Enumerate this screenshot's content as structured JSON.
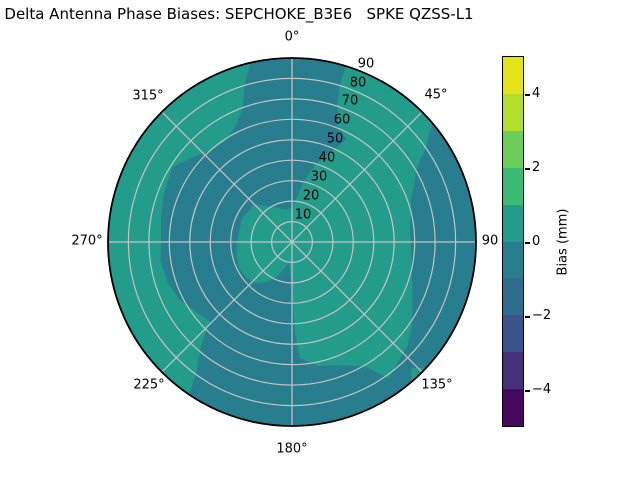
{
  "title": "Delta Antenna Phase Biases: SEPCHOKE_B3E6   SPKE QZSS-L1",
  "chart_data": {
    "type": "heatmap",
    "projection": "polar",
    "grid": true,
    "angular_tick_labels": [
      "0°",
      "45°",
      "90",
      "135°",
      "180°",
      "225°",
      "270°",
      "315°"
    ],
    "radial_tick_labels": [
      "10",
      "20",
      "30",
      "40",
      "50",
      "60",
      "70",
      "80",
      "90"
    ],
    "radial_range": [
      0,
      90
    ],
    "colorbar": {
      "label": "Bias (mm)",
      "range": [
        -5,
        5
      ],
      "tick_values": [
        4,
        2,
        0,
        -2,
        -4
      ],
      "tick_labels": [
        "4",
        "2",
        "0",
        "−2",
        "−4"
      ],
      "segments_top_to_bottom": [
        {
          "range": [
            4,
            5
          ],
          "color": "#e5e419"
        },
        {
          "range": [
            3,
            4
          ],
          "color": "#b2dd2c"
        },
        {
          "range": [
            2,
            3
          ],
          "color": "#6cce59"
        },
        {
          "range": [
            1,
            2
          ],
          "color": "#3bbb75"
        },
        {
          "range": [
            0,
            1
          ],
          "color": "#249c8c"
        },
        {
          "range": [
            -1,
            0
          ],
          "color": "#287e8e"
        },
        {
          "range": [
            -2,
            -1
          ],
          "color": "#2e6d8e"
        },
        {
          "range": [
            -3,
            -2
          ],
          "color": "#3b518b"
        },
        {
          "range": [
            -4,
            -3
          ],
          "color": "#45307e"
        },
        {
          "range": [
            -5,
            -4
          ],
          "color": "#46085c"
        }
      ]
    },
    "regions": [
      {
        "name": "background-positive",
        "value_range_mm": [
          0,
          1
        ],
        "color": "#249c8c"
      },
      {
        "name": "negative-lobe-center",
        "value_range_mm": [
          -1,
          0
        ],
        "color": "#287e8e",
        "points_az_r": [
          [
            347,
            90
          ],
          [
            353,
            90
          ],
          [
            359,
            90
          ],
          [
            5,
            90
          ],
          [
            11,
            90
          ],
          [
            17,
            90
          ],
          [
            17,
            79
          ],
          [
            19,
            68
          ],
          [
            21,
            61
          ],
          [
            28,
            57
          ],
          [
            24,
            49
          ],
          [
            17,
            40
          ],
          [
            12,
            31
          ],
          [
            8,
            24
          ],
          [
            1,
            17
          ],
          [
            350,
            16
          ],
          [
            330,
            20
          ],
          [
            315,
            26
          ],
          [
            295,
            27
          ],
          [
            270,
            27
          ],
          [
            255,
            28
          ],
          [
            243,
            29
          ],
          [
            232,
            28
          ],
          [
            222,
            27
          ],
          [
            212,
            23
          ],
          [
            203,
            18
          ],
          [
            195,
            13
          ],
          [
            188,
            10
          ],
          [
            181,
            20
          ],
          [
            179,
            32
          ],
          [
            178,
            45
          ],
          [
            176,
            57
          ],
          [
            168,
            62
          ],
          [
            158,
            65
          ],
          [
            150,
            70
          ],
          [
            146,
            78
          ],
          [
            144,
            84
          ],
          [
            143,
            90
          ],
          [
            150,
            90
          ],
          [
            158,
            90
          ],
          [
            166,
            90
          ],
          [
            174,
            90
          ],
          [
            182,
            90
          ],
          [
            190,
            90
          ],
          [
            198,
            90
          ],
          [
            206,
            90
          ],
          [
            214,
            90
          ],
          [
            216,
            80
          ],
          [
            221,
            68
          ],
          [
            226,
            56
          ],
          [
            234,
            58
          ],
          [
            243,
            62
          ],
          [
            252,
            64
          ],
          [
            262,
            65
          ],
          [
            270,
            64
          ],
          [
            280,
            65
          ],
          [
            290,
            67
          ],
          [
            302,
            69
          ],
          [
            310,
            64
          ],
          [
            318,
            60
          ],
          [
            326,
            59
          ],
          [
            334,
            63
          ],
          [
            340,
            70
          ],
          [
            343,
            80
          ]
        ]
      },
      {
        "name": "negative-band-east",
        "value_range_mm": [
          -1,
          0
        ],
        "color": "#287e8e",
        "points_az_r": [
          [
            50,
            90
          ],
          [
            58,
            90
          ],
          [
            66,
            90
          ],
          [
            74,
            90
          ],
          [
            82,
            90
          ],
          [
            90,
            90
          ],
          [
            98,
            90
          ],
          [
            106,
            90
          ],
          [
            114,
            90
          ],
          [
            122,
            90
          ],
          [
            130,
            90
          ],
          [
            138,
            90
          ],
          [
            143,
            90
          ],
          [
            148,
            90
          ],
          [
            146,
            83
          ],
          [
            140,
            79
          ],
          [
            132,
            76
          ],
          [
            126,
            72
          ],
          [
            120,
            68
          ],
          [
            113,
            64
          ],
          [
            106,
            61
          ],
          [
            98,
            59
          ],
          [
            90,
            58
          ],
          [
            83,
            58
          ],
          [
            76,
            60
          ],
          [
            70,
            62
          ],
          [
            65,
            66
          ],
          [
            60,
            70
          ],
          [
            57,
            75
          ],
          [
            55,
            80
          ],
          [
            52,
            85
          ]
        ]
      },
      {
        "name": "positive-rim-notch-135",
        "value_range_mm": [
          0,
          1
        ],
        "color": "#249c8c",
        "points_az_r": [
          [
            133,
            90.3
          ],
          [
            136.5,
            85
          ],
          [
            140,
            90.3
          ]
        ]
      }
    ]
  }
}
